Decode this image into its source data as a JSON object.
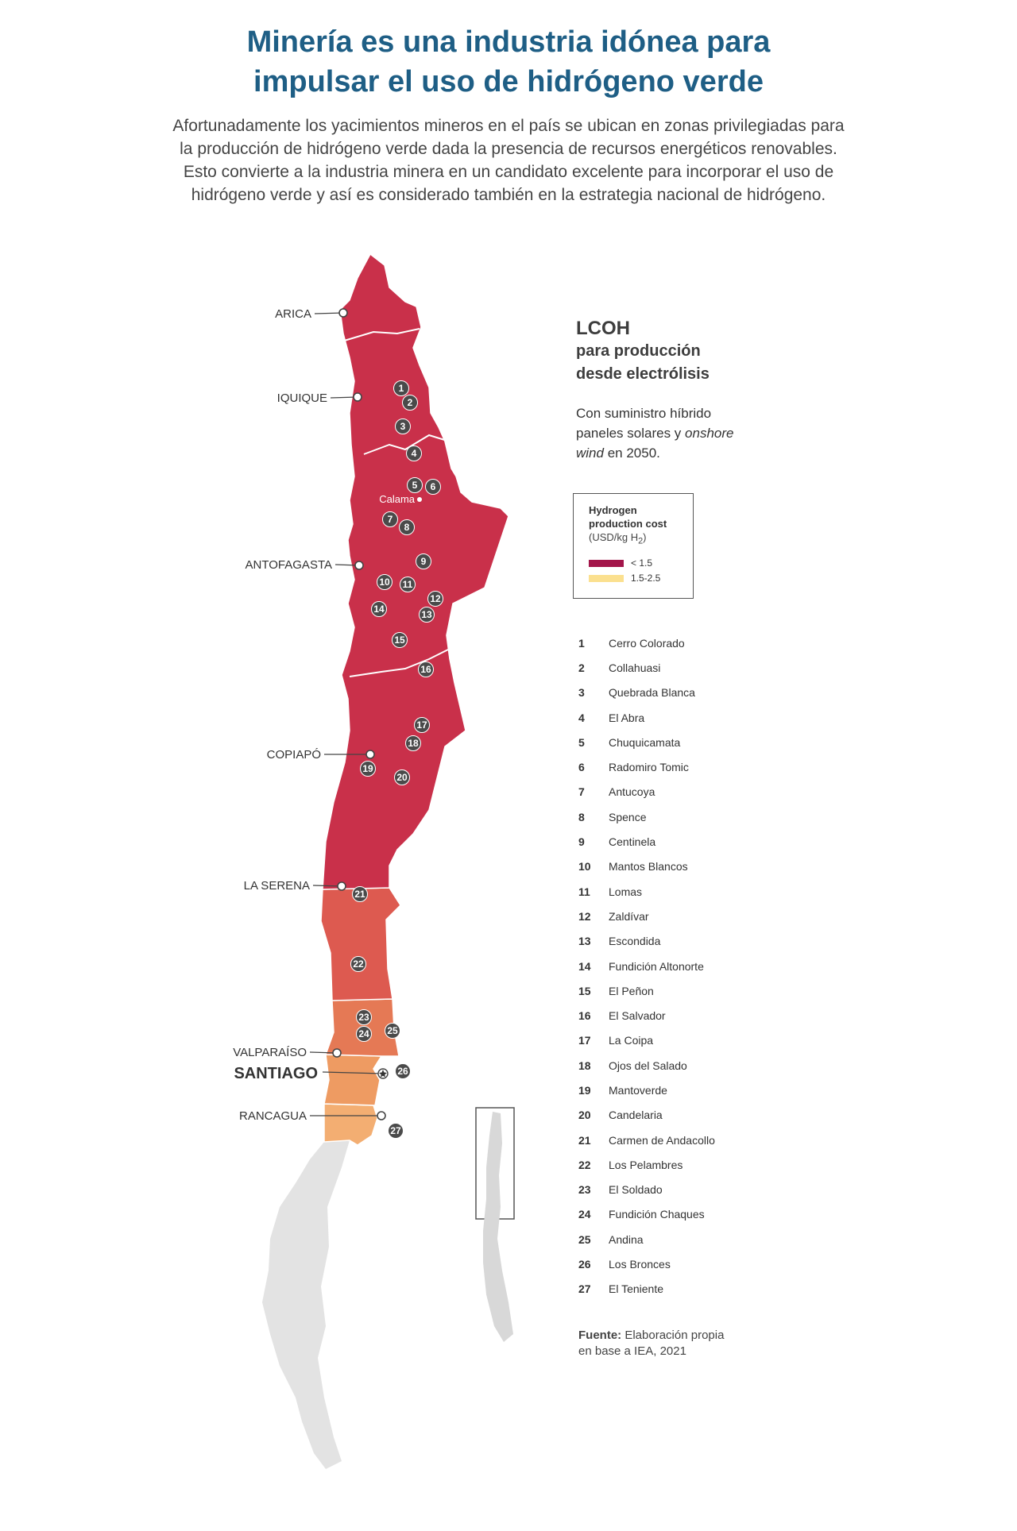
{
  "header": {
    "title_line1": "Minería es una industria idónea para",
    "title_line2": "impulsar el uso de hidrógeno verde",
    "intro_lines": [
      "Afortunadamente los yacimientos mineros en el país se ubican en zonas privilegiadas para",
      "la producción de hidrógeno verde dada la presencia de recursos energéticos renovables.",
      "Esto convierte a la industria minera en un candidato excelente para incorporar el uso de",
      "hidrógeno verde y así es considerado también en la estrategia nacional de hidrógeno."
    ]
  },
  "panel": {
    "title": "LCOH",
    "subtitle_line1": "para producción",
    "subtitle_line2": "desde electrólisis",
    "supply_line1": "Con suministro híbrido",
    "supply_line2_a": "paneles solares y ",
    "supply_line2_b": "onshore",
    "supply_line3_a": "wind",
    "supply_line3_b": " en 2050."
  },
  "legend": {
    "title_line1": "Hydrogen",
    "title_line2": "production cost",
    "unit_a": "(USD/kg H",
    "unit_sub": "2",
    "unit_b": ")",
    "items": [
      {
        "label": "< 1.5",
        "color": "#a3154a"
      },
      {
        "label": "1.5-2.5",
        "color": "#fbe08f"
      }
    ]
  },
  "map": {
    "cities": [
      "ARICA",
      "IQUIQUE",
      "ANTOFAGASTA",
      "COPIAPÓ",
      "LA SERENA",
      "VALPARAÍSO",
      "RANCAGUA"
    ],
    "capital": "SANTIAGO",
    "calama": "Calama",
    "region_colors": [
      "#c9304a",
      "#d2404c",
      "#dd5a50",
      "#e57955",
      "#ee9b62",
      "#f3ae72"
    ],
    "rest_color": "#e3e3e3"
  },
  "mines": [
    {
      "num": "1",
      "name": "Cerro Colorado"
    },
    {
      "num": "2",
      "name": "Collahuasi"
    },
    {
      "num": "3",
      "name": "Quebrada Blanca"
    },
    {
      "num": "4",
      "name": "El Abra"
    },
    {
      "num": "5",
      "name": "Chuquicamata"
    },
    {
      "num": "6",
      "name": "Radomiro Tomic"
    },
    {
      "num": "7",
      "name": "Antucoya"
    },
    {
      "num": "8",
      "name": "Spence"
    },
    {
      "num": "9",
      "name": "Centinela"
    },
    {
      "num": "10",
      "name": "Mantos Blancos"
    },
    {
      "num": "11",
      "name": "Lomas"
    },
    {
      "num": "12",
      "name": "Zaldívar"
    },
    {
      "num": "13",
      "name": "Escondida"
    },
    {
      "num": "14",
      "name": "Fundición Altonorte"
    },
    {
      "num": "15",
      "name": "El Peñon"
    },
    {
      "num": "16",
      "name": "El Salvador"
    },
    {
      "num": "17",
      "name": "La Coipa"
    },
    {
      "num": "18",
      "name": "Ojos del Salado"
    },
    {
      "num": "19",
      "name": "Mantoverde"
    },
    {
      "num": "20",
      "name": "Candelaria"
    },
    {
      "num": "21",
      "name": "Carmen de Andacollo"
    },
    {
      "num": "22",
      "name": "Los Pelambres"
    },
    {
      "num": "23",
      "name": "El Soldado"
    },
    {
      "num": "24",
      "name": "Fundición Chaques"
    },
    {
      "num": "25",
      "name": "Andina"
    },
    {
      "num": "26",
      "name": "Los Bronces"
    },
    {
      "num": "27",
      "name": "El Teniente"
    }
  ],
  "source": {
    "label": "Fuente:",
    "text_line1": " Elaboración propia",
    "text_line2": "en base a IEA, 2021"
  }
}
